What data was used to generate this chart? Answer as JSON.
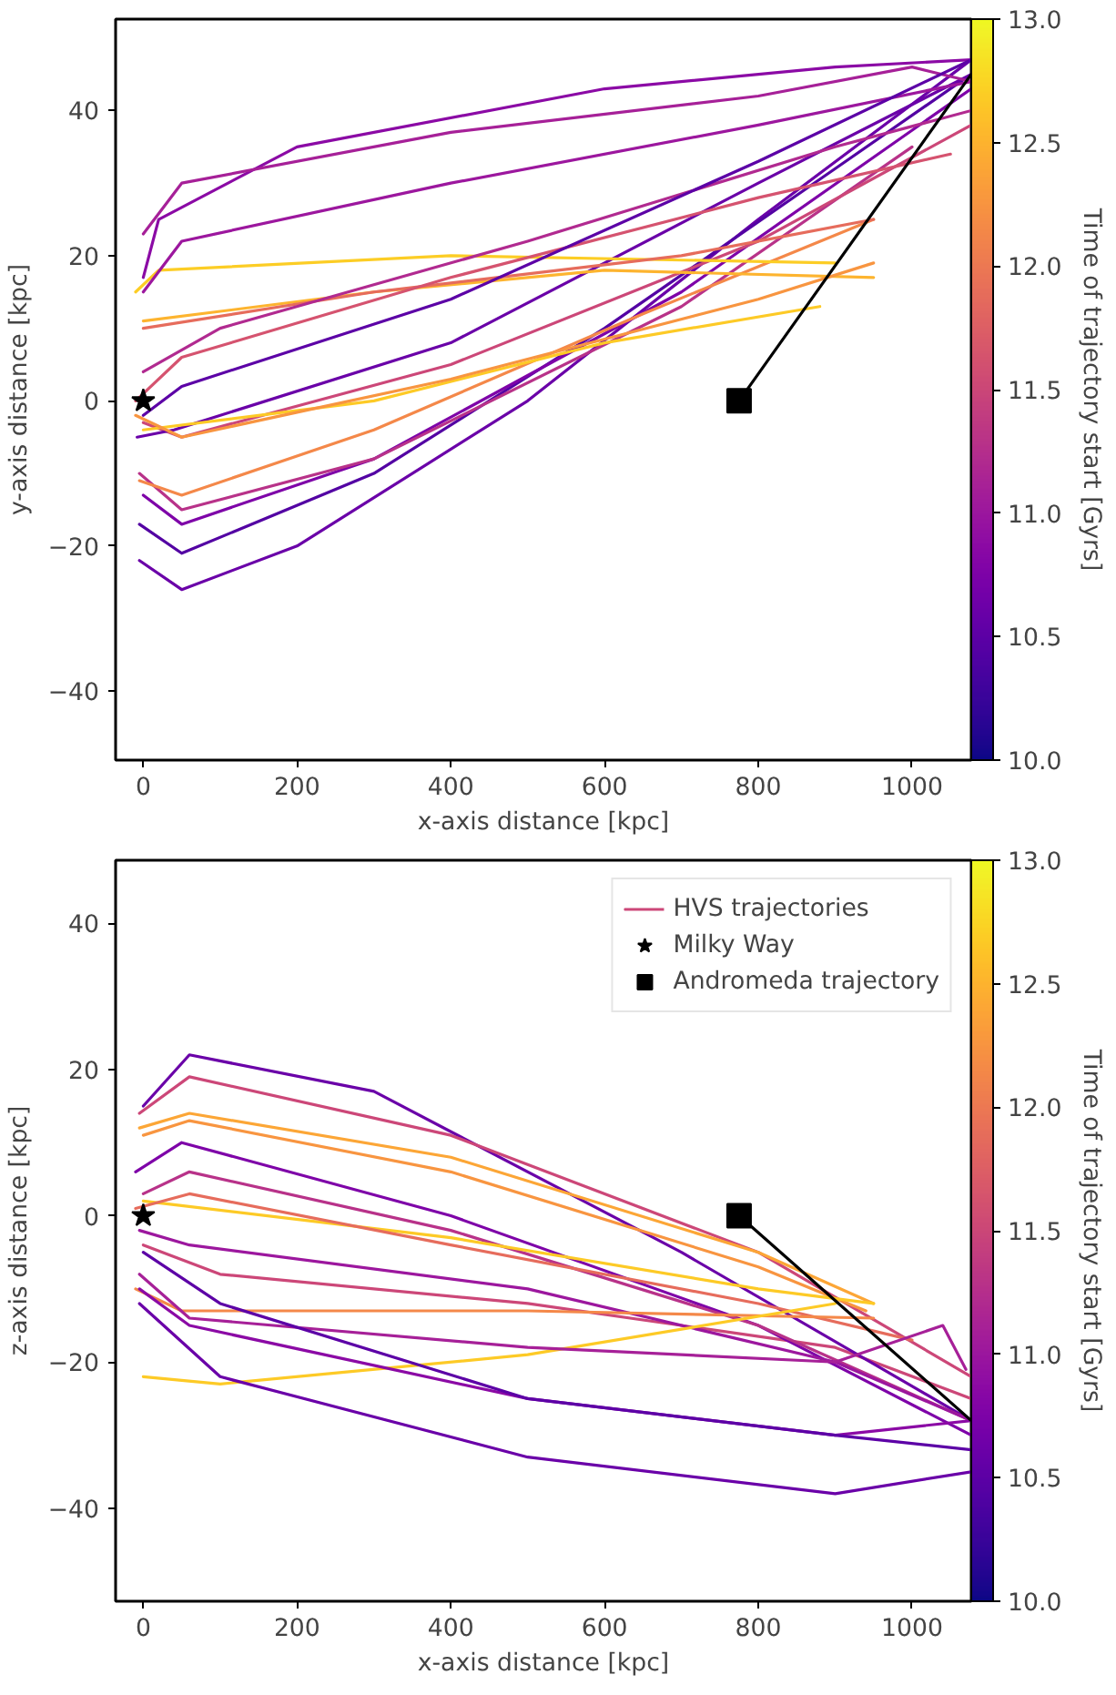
{
  "chart_data": [
    {
      "type": "line",
      "xlabel": "x-axis distance [kpc]",
      "ylabel": "y-axis distance [kpc]",
      "clabel": "Time of trajectory start [Gyrs]",
      "xlim": [
        -36,
        1077
      ],
      "ylim": [
        -49.5,
        52.6
      ],
      "xticks": [
        0,
        200,
        400,
        600,
        800,
        1000
      ],
      "yticks": [
        -40,
        -20,
        0,
        20,
        40
      ],
      "clim": [
        10,
        13
      ],
      "cticks": [
        {
          "value": 10,
          "label": "10.0"
        },
        10.5,
        {
          "value": 11,
          "label": "11.0"
        },
        11.5,
        {
          "value": 12,
          "label": "12.0"
        },
        12.5,
        {
          "value": 13,
          "label": "13.0"
        }
      ],
      "grid": false,
      "legend": false,
      "series": [
        {
          "type": "line",
          "color": "#8b0aa5",
          "x": [
            0,
            20,
            200,
            600,
            900,
            1077
          ],
          "values": [
            17,
            25,
            35,
            43,
            46,
            47
          ]
        },
        {
          "type": "line",
          "color": "#6a00a8",
          "x": [
            -5,
            50,
            200,
            500,
            800,
            1077
          ],
          "values": [
            -22,
            -26,
            -20,
            0,
            25,
            47
          ]
        },
        {
          "type": "line",
          "color": "#5302a3",
          "x": [
            -5,
            50,
            300,
            600,
            900,
            1077
          ],
          "values": [
            -17,
            -21,
            -10,
            10,
            32,
            45
          ]
        },
        {
          "type": "line",
          "color": "#7e03a8",
          "x": [
            0,
            50,
            300,
            700,
            1077
          ],
          "values": [
            -13,
            -17,
            -8,
            15,
            43
          ]
        },
        {
          "type": "line",
          "color": "#b83289",
          "x": [
            -5,
            50,
            300,
            700,
            1000
          ],
          "values": [
            -10,
            -15,
            -8,
            13,
            35
          ]
        },
        {
          "type": "line",
          "color": "#f48849",
          "x": [
            -5,
            50,
            300,
            650,
            950
          ],
          "values": [
            -11,
            -13,
            -4,
            12,
            25
          ]
        },
        {
          "type": "line",
          "color": "#cc4778",
          "x": [
            0,
            50,
            400,
            800,
            1077
          ],
          "values": [
            -3,
            -5,
            5,
            22,
            38
          ]
        },
        {
          "type": "line",
          "color": "#6a00a8",
          "x": [
            -8,
            40,
            400,
            800,
            1077
          ],
          "values": [
            -5,
            -4,
            8,
            30,
            45
          ]
        },
        {
          "type": "line",
          "color": "#fdca26",
          "x": [
            0,
            300,
            600,
            880
          ],
          "values": [
            -4,
            0,
            8,
            13
          ]
        },
        {
          "type": "line",
          "color": "#fccd25",
          "x": [
            -10,
            20,
            400,
            900
          ],
          "values": [
            15,
            18,
            20,
            19
          ]
        },
        {
          "type": "line",
          "color": "#fdb42f",
          "x": [
            0,
            300,
            600,
            950
          ],
          "values": [
            11,
            15,
            18,
            17
          ]
        },
        {
          "type": "line",
          "color": "#e66c5c",
          "x": [
            0,
            300,
            700,
            950
          ],
          "values": [
            10,
            15,
            20,
            25
          ]
        },
        {
          "type": "line",
          "color": "#9c179e",
          "x": [
            0,
            50,
            400,
            800,
            1077
          ],
          "values": [
            15,
            22,
            30,
            38,
            44
          ]
        },
        {
          "type": "line",
          "color": "#a62098",
          "x": [
            0,
            50,
            400,
            800,
            1000,
            1077
          ],
          "values": [
            23,
            30,
            37,
            42,
            46,
            44
          ]
        },
        {
          "type": "line",
          "color": "#b12a90",
          "x": [
            0,
            100,
            500,
            900,
            1077
          ],
          "values": [
            4,
            10,
            22,
            35,
            40
          ]
        },
        {
          "type": "line",
          "color": "#d5536f",
          "x": [
            -10,
            50,
            400,
            800,
            1050
          ],
          "values": [
            0,
            6,
            17,
            28,
            34
          ]
        },
        {
          "type": "line",
          "color": "#5c01a6",
          "x": [
            0,
            50,
            400,
            800,
            1077
          ],
          "values": [
            -2,
            2,
            14,
            33,
            47
          ]
        },
        {
          "type": "line",
          "color": "#f89540",
          "x": [
            -10,
            50,
            400,
            800,
            950
          ],
          "values": [
            -2,
            -5,
            3,
            14,
            19
          ]
        },
        {
          "type": "line",
          "color": "#000000",
          "x": [
            775,
            1077
          ],
          "values": [
            0,
            45
          ]
        },
        {
          "type": "scatter",
          "marker": "star",
          "color": "#000000",
          "x": [
            0
          ],
          "values": [
            0
          ]
        },
        {
          "type": "scatter",
          "marker": "square",
          "color": "#000000",
          "x": [
            775
          ],
          "values": [
            0
          ]
        }
      ]
    },
    {
      "type": "line",
      "xlabel": "x-axis distance [kpc]",
      "ylabel": "z-axis distance [kpc]",
      "clabel": "Time of trajectory start [Gyrs]",
      "xlim": [
        -36,
        1077
      ],
      "ylim": [
        -52.7,
        48.6
      ],
      "xticks": [
        0,
        200,
        400,
        600,
        800,
        1000
      ],
      "yticks": [
        -40,
        -20,
        0,
        20,
        40
      ],
      "clim": [
        10,
        13
      ],
      "cticks": [
        {
          "value": 10,
          "label": "10.0"
        },
        10.5,
        {
          "value": 11,
          "label": "11.0"
        },
        11.5,
        {
          "value": 12,
          "label": "12.0"
        },
        12.5,
        {
          "value": 13,
          "label": "13.0"
        }
      ],
      "grid": false,
      "legend": "top right",
      "series": [
        {
          "type": "line",
          "name": "HVS trajectories",
          "color": "#cc4778",
          "x": [
            0,
            100,
            500,
            900,
            1077
          ],
          "values": [
            -4,
            -8,
            -12,
            -18,
            -25
          ]
        },
        {
          "type": "line",
          "color": "#6a00a8",
          "x": [
            0,
            60,
            300,
            700,
            1077
          ],
          "values": [
            15,
            22,
            17,
            -5,
            -28
          ]
        },
        {
          "type": "line",
          "color": "#cc4778",
          "x": [
            -5,
            60,
            400,
            800,
            1077
          ],
          "values": [
            14,
            19,
            11,
            -5,
            -22
          ]
        },
        {
          "type": "line",
          "color": "#fca636",
          "x": [
            -5,
            60,
            400,
            800,
            950
          ],
          "values": [
            12,
            14,
            8,
            -5,
            -12
          ]
        },
        {
          "type": "line",
          "color": "#f89540",
          "x": [
            0,
            60,
            400,
            800,
            940
          ],
          "values": [
            11,
            13,
            6,
            -7,
            -13
          ]
        },
        {
          "type": "line",
          "color": "#7e03a8",
          "x": [
            -10,
            50,
            400,
            800,
            1077
          ],
          "values": [
            6,
            10,
            0,
            -15,
            -30
          ]
        },
        {
          "type": "line",
          "color": "#b83289",
          "x": [
            0,
            60,
            400,
            800,
            1077
          ],
          "values": [
            3,
            6,
            -2,
            -15,
            -28
          ]
        },
        {
          "type": "line",
          "color": "#fdca26",
          "x": [
            0,
            400,
            800,
            950
          ],
          "values": [
            2,
            -3,
            -10,
            -12
          ]
        },
        {
          "type": "line",
          "color": "#e66c5c",
          "x": [
            -10,
            60,
            400,
            800,
            1000
          ],
          "values": [
            1,
            3,
            -4,
            -12,
            -17
          ]
        },
        {
          "type": "line",
          "color": "#9c179e",
          "x": [
            -5,
            60,
            500,
            900,
            1077
          ],
          "values": [
            -2,
            -4,
            -10,
            -20,
            -28
          ]
        },
        {
          "type": "line",
          "color": "#f48849",
          "x": [
            -10,
            50,
            500,
            950
          ],
          "values": [
            -10,
            -13,
            -13,
            -14
          ]
        },
        {
          "type": "line",
          "color": "#fdca26",
          "x": [
            0,
            100,
            500,
            900
          ],
          "values": [
            -22,
            -23,
            -19,
            -12
          ]
        },
        {
          "type": "line",
          "color": "#8b0aa5",
          "x": [
            -5,
            60,
            500,
            900,
            1077
          ],
          "values": [
            -10,
            -15,
            -25,
            -30,
            -28
          ]
        },
        {
          "type": "line",
          "color": "#6a00a8",
          "x": [
            -5,
            100,
            500,
            900,
            1077
          ],
          "values": [
            -12,
            -22,
            -33,
            -38,
            -35
          ]
        },
        {
          "type": "line",
          "color": "#a62098",
          "x": [
            -5,
            60,
            500,
            900,
            1040,
            1070
          ],
          "values": [
            -8,
            -14,
            -18,
            -20,
            -15,
            -21
          ]
        },
        {
          "type": "line",
          "color": "#5c01a6",
          "x": [
            0,
            100,
            500,
            900,
            1077
          ],
          "values": [
            -5,
            -12,
            -25,
            -30,
            -32
          ]
        },
        {
          "type": "line",
          "color": "#000000",
          "x": [
            775,
            1077
          ],
          "values": [
            0,
            -28
          ]
        },
        {
          "type": "scatter",
          "name": "Milky Way",
          "marker": "star",
          "color": "#000000",
          "x": [
            0
          ],
          "values": [
            0
          ]
        },
        {
          "type": "scatter",
          "name": "Andromeda trajectory",
          "marker": "square",
          "color": "#000000",
          "x": [
            775
          ],
          "values": [
            0
          ]
        }
      ]
    }
  ]
}
